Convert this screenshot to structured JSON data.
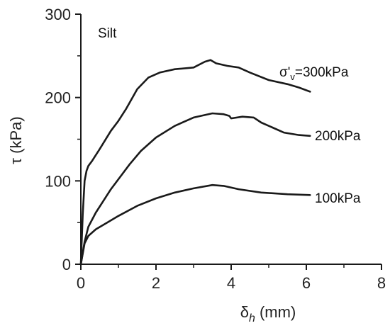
{
  "chart_data": {
    "type": "line",
    "title": "",
    "annotation": "Silt",
    "xlabel": "δ",
    "xlabel_sub": "h",
    "xlabel_unit": " (mm)",
    "ylabel": "τ (kPa)",
    "xlim": [
      0,
      8
    ],
    "ylim": [
      0,
      300
    ],
    "xticks": [
      0,
      2,
      4,
      6,
      8
    ],
    "yticks": [
      0,
      100,
      200,
      300
    ],
    "grid": false,
    "legend": "none",
    "series": [
      {
        "label_main": "σ'",
        "label_sub": "v",
        "label_rest": "=300kPa",
        "points": [
          [
            0,
            0
          ],
          [
            0.05,
            60
          ],
          [
            0.1,
            100
          ],
          [
            0.15,
            112
          ],
          [
            0.2,
            118
          ],
          [
            0.3,
            124
          ],
          [
            0.5,
            138
          ],
          [
            0.8,
            160
          ],
          [
            1.0,
            172
          ],
          [
            1.2,
            186
          ],
          [
            1.5,
            210
          ],
          [
            1.8,
            224
          ],
          [
            2.1,
            230
          ],
          [
            2.5,
            234
          ],
          [
            3.0,
            236
          ],
          [
            3.3,
            243
          ],
          [
            3.45,
            245
          ],
          [
            3.6,
            241
          ],
          [
            3.9,
            238
          ],
          [
            4.2,
            236
          ],
          [
            4.5,
            230
          ],
          [
            5.0,
            221
          ],
          [
            5.5,
            216
          ],
          [
            5.8,
            212
          ],
          [
            6.1,
            207
          ]
        ]
      },
      {
        "label": "200kPa",
        "points": [
          [
            0,
            0
          ],
          [
            0.1,
            27
          ],
          [
            0.2,
            45
          ],
          [
            0.4,
            62
          ],
          [
            0.6,
            76
          ],
          [
            0.8,
            90
          ],
          [
            1.0,
            102
          ],
          [
            1.3,
            120
          ],
          [
            1.6,
            136
          ],
          [
            2.0,
            152
          ],
          [
            2.5,
            166
          ],
          [
            3.0,
            176
          ],
          [
            3.5,
            181
          ],
          [
            3.8,
            180
          ],
          [
            3.95,
            178
          ],
          [
            4.0,
            175
          ],
          [
            4.3,
            177
          ],
          [
            4.6,
            176
          ],
          [
            4.8,
            170
          ],
          [
            5.1,
            164
          ],
          [
            5.4,
            158
          ],
          [
            5.8,
            155
          ],
          [
            6.1,
            154
          ]
        ]
      },
      {
        "label": "100kPa",
        "points": [
          [
            0,
            0
          ],
          [
            0.1,
            25
          ],
          [
            0.2,
            34
          ],
          [
            0.4,
            42
          ],
          [
            0.7,
            50
          ],
          [
            1.0,
            58
          ],
          [
            1.5,
            70
          ],
          [
            2.0,
            79
          ],
          [
            2.5,
            86
          ],
          [
            3.0,
            91
          ],
          [
            3.5,
            95
          ],
          [
            3.8,
            94
          ],
          [
            4.2,
            90
          ],
          [
            4.8,
            86
          ],
          [
            5.5,
            84
          ],
          [
            6.1,
            83
          ]
        ]
      }
    ]
  }
}
